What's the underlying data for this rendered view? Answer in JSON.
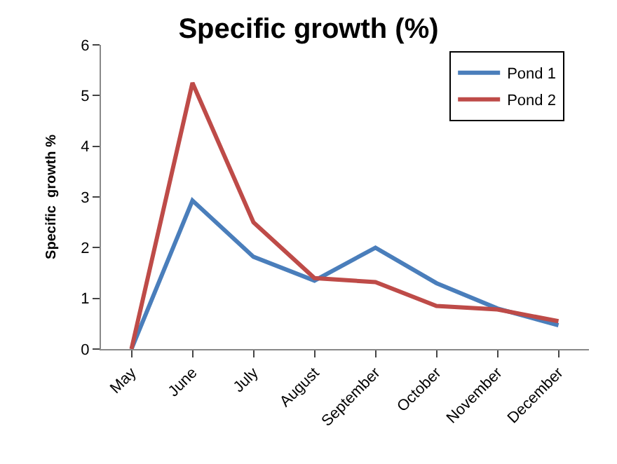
{
  "chart_data": {
    "type": "line",
    "title": "Specific growth (%)",
    "ylabel": "Specific  growth %",
    "categories": [
      "May",
      "June",
      "July",
      "August",
      "September",
      "October",
      "November",
      "December"
    ],
    "series": [
      {
        "name": "Pond 1",
        "color": "#4a7ebb",
        "values": [
          0,
          2.93,
          1.82,
          1.35,
          2.0,
          1.3,
          0.8,
          0.47
        ]
      },
      {
        "name": "Pond 2",
        "color": "#be4b48",
        "values": [
          0,
          5.25,
          2.5,
          1.4,
          1.32,
          0.85,
          0.78,
          0.55
        ]
      }
    ],
    "ylim": [
      0,
      6
    ],
    "yticks": [
      0,
      1,
      2,
      3,
      4,
      5,
      6
    ],
    "legend": "top right",
    "marker": "none",
    "line_style": "solid"
  }
}
